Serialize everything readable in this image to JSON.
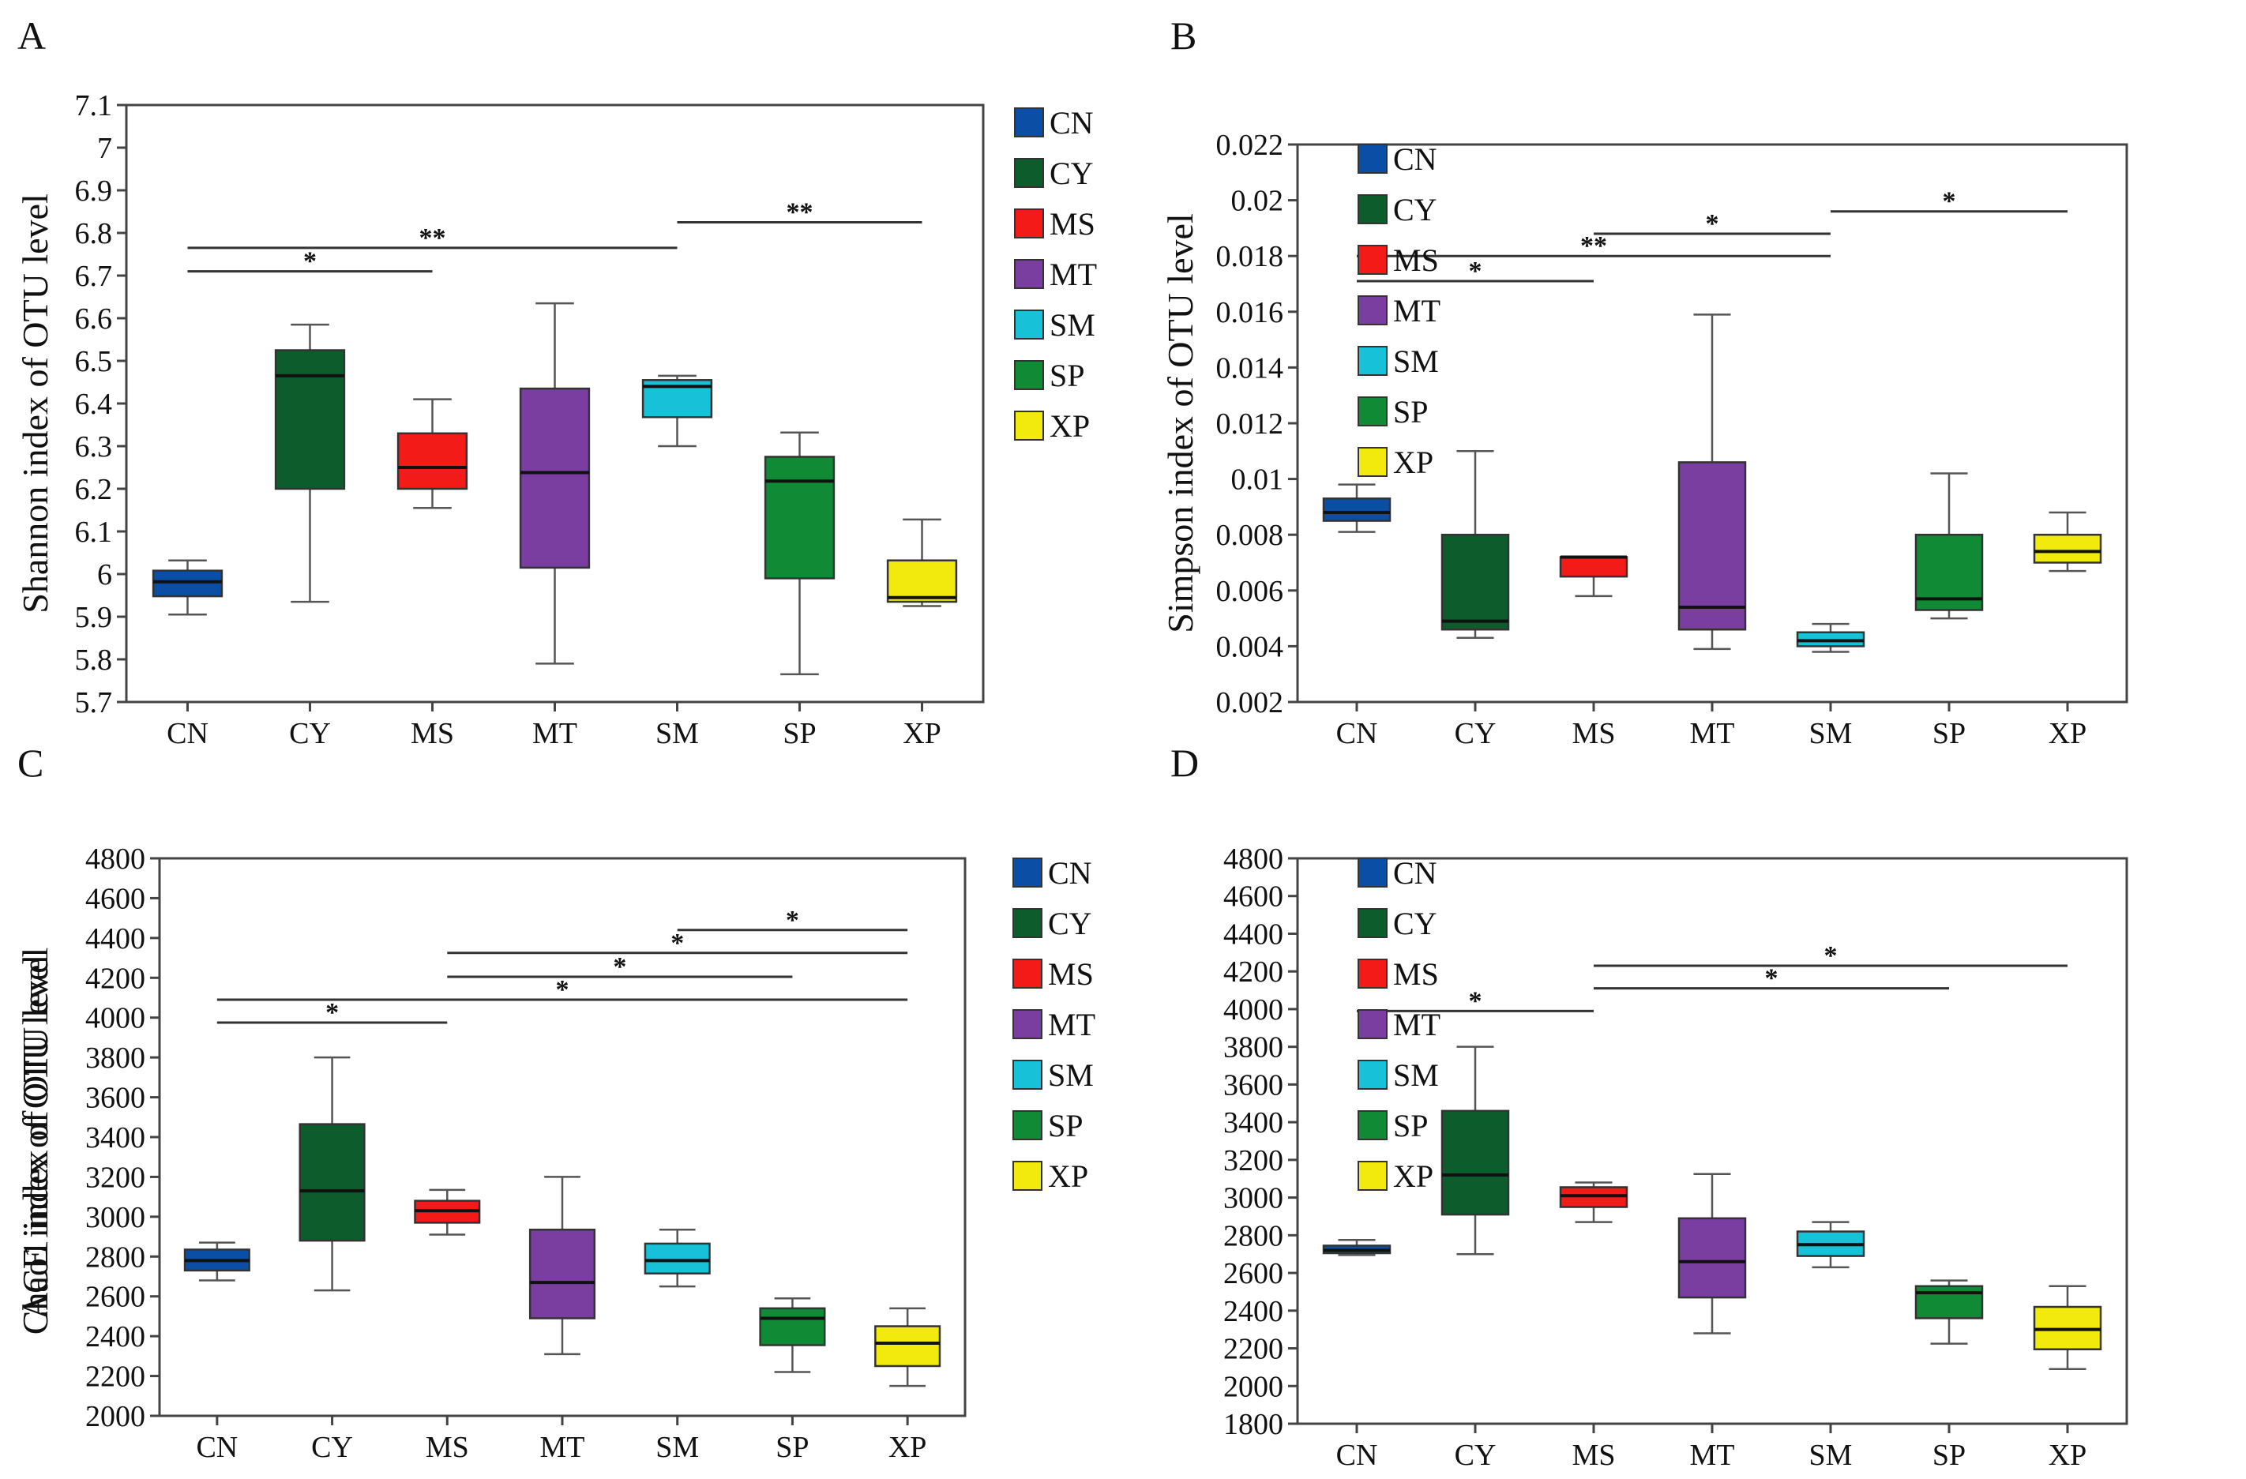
{
  "groups": [
    "CN",
    "CY",
    "MS",
    "MT",
    "SM",
    "SP",
    "XP"
  ],
  "colors": {
    "CN": "#0a4ea6",
    "CY": "#0d5c2c",
    "MS": "#f21b17",
    "MT": "#7a3ea0",
    "SM": "#17c1d8",
    "SP": "#108a35",
    "XP": "#f2ea0c"
  },
  "chart_data": [
    {
      "panel_label": "A",
      "type": "box",
      "ylabel": "Shannon index of OTU level",
      "ylim": [
        5.7,
        7.1
      ],
      "yticks": [
        "5.7",
        "5.8",
        "5.9",
        "6",
        "6.1",
        "6.2",
        "6.3",
        "6.4",
        "6.5",
        "6.6",
        "6.7",
        "6.8",
        "6.9",
        "7",
        "7.1"
      ],
      "boxes": [
        {
          "name": "CN",
          "min": 5.905,
          "q1": 5.948,
          "median": 5.982,
          "q3": 6.008,
          "max": 6.032
        },
        {
          "name": "CY",
          "min": 5.935,
          "q1": 6.2,
          "median": 6.465,
          "q3": 6.525,
          "max": 6.585
        },
        {
          "name": "MS",
          "min": 6.155,
          "q1": 6.2,
          "median": 6.25,
          "q3": 6.33,
          "max": 6.41
        },
        {
          "name": "MT",
          "min": 5.79,
          "q1": 6.015,
          "median": 6.238,
          "q3": 6.435,
          "max": 6.635
        },
        {
          "name": "SM",
          "min": 6.3,
          "q1": 6.368,
          "median": 6.44,
          "q3": 6.455,
          "max": 6.465
        },
        {
          "name": "SP",
          "min": 5.765,
          "q1": 5.99,
          "median": 6.218,
          "q3": 6.275,
          "max": 6.332
        },
        {
          "name": "XP",
          "min": 5.925,
          "q1": 5.935,
          "median": 5.945,
          "q3": 6.032,
          "max": 6.128
        }
      ],
      "significance": [
        {
          "from": "CN",
          "to": "MS",
          "y": 6.71,
          "label": "*"
        },
        {
          "from": "CN",
          "to": "SM",
          "y": 6.765,
          "label": "**"
        },
        {
          "from": "SM",
          "to": "XP",
          "y": 6.825,
          "label": "**"
        }
      ]
    },
    {
      "panel_label": "B",
      "type": "box",
      "ylabel": "Simpson index of OTU level",
      "ylim": [
        0.002,
        0.022
      ],
      "yticks": [
        "0.002",
        "0.004",
        "0.006",
        "0.008",
        "0.01",
        "0.012",
        "0.014",
        "0.016",
        "0.018",
        "0.02",
        "0.022"
      ],
      "boxes": [
        {
          "name": "CN",
          "min": 0.0081,
          "q1": 0.0085,
          "median": 0.0088,
          "q3": 0.0093,
          "max": 0.0098
        },
        {
          "name": "CY",
          "min": 0.0043,
          "q1": 0.0046,
          "median": 0.0049,
          "q3": 0.008,
          "max": 0.011
        },
        {
          "name": "MS",
          "min": 0.0058,
          "q1": 0.0065,
          "median": 0.0072,
          "q3": 0.0072,
          "max": 0.0072
        },
        {
          "name": "MT",
          "min": 0.0039,
          "q1": 0.0046,
          "median": 0.0054,
          "q3": 0.0106,
          "max": 0.0159
        },
        {
          "name": "SM",
          "min": 0.0038,
          "q1": 0.004,
          "median": 0.0042,
          "q3": 0.0045,
          "max": 0.0048
        },
        {
          "name": "SP",
          "min": 0.005,
          "q1": 0.0053,
          "median": 0.0057,
          "q3": 0.008,
          "max": 0.0102
        },
        {
          "name": "XP",
          "min": 0.0067,
          "q1": 0.007,
          "median": 0.0074,
          "q3": 0.008,
          "max": 0.0088
        }
      ],
      "significance": [
        {
          "from": "CN",
          "to": "MS",
          "y": 0.0171,
          "label": "*"
        },
        {
          "from": "CN",
          "to": "SM",
          "y": 0.018,
          "label": "**"
        },
        {
          "from": "MS",
          "to": "SM",
          "y": 0.0188,
          "label": "*"
        },
        {
          "from": "SM",
          "to": "XP",
          "y": 0.0196,
          "label": "*"
        }
      ]
    },
    {
      "panel_label": "C",
      "type": "box",
      "ylabel": "ACE index of OTU level",
      "ylim": [
        2000,
        4800
      ],
      "yticks": [
        "2000",
        "2200",
        "2400",
        "2600",
        "2800",
        "3000",
        "3200",
        "3400",
        "3600",
        "3800",
        "4000",
        "4200",
        "4400",
        "4600",
        "4800"
      ],
      "boxes": [
        {
          "name": "CN",
          "min": 2680,
          "q1": 2730,
          "median": 2780,
          "q3": 2835,
          "max": 2870
        },
        {
          "name": "CY",
          "min": 2630,
          "q1": 2880,
          "median": 3130,
          "q3": 3465,
          "max": 3800
        },
        {
          "name": "MS",
          "min": 2910,
          "q1": 2970,
          "median": 3030,
          "q3": 3080,
          "max": 3135
        },
        {
          "name": "MT",
          "min": 2310,
          "q1": 2490,
          "median": 2670,
          "q3": 2935,
          "max": 3200
        },
        {
          "name": "SM",
          "min": 2650,
          "q1": 2715,
          "median": 2780,
          "q3": 2865,
          "max": 2935
        },
        {
          "name": "SP",
          "min": 2220,
          "q1": 2355,
          "median": 2490,
          "q3": 2540,
          "max": 2590
        },
        {
          "name": "XP",
          "min": 2150,
          "q1": 2250,
          "median": 2365,
          "q3": 2450,
          "max": 2540
        }
      ],
      "significance": [
        {
          "from": "CN",
          "to": "MS",
          "y": 3975,
          "label": "*"
        },
        {
          "from": "CN",
          "to": "XP",
          "y": 4090,
          "label": "*"
        },
        {
          "from": "MS",
          "to": "SP",
          "y": 4205,
          "label": "*"
        },
        {
          "from": "MS",
          "to": "XP",
          "y": 4325,
          "label": "*"
        },
        {
          "from": "SM",
          "to": "XP",
          "y": 4440,
          "label": "*"
        }
      ]
    },
    {
      "panel_label": "D",
      "type": "box",
      "ylabel": "Chao1 index of OTU level",
      "ylim": [
        1800,
        4800
      ],
      "yticks": [
        "1800",
        "2000",
        "2200",
        "2400",
        "2600",
        "2800",
        "3000",
        "3200",
        "3400",
        "3600",
        "3800",
        "4000",
        "4200",
        "4400",
        "4600",
        "4800"
      ],
      "boxes": [
        {
          "name": "CN",
          "min": 2695,
          "q1": 2705,
          "median": 2720,
          "q3": 2745,
          "max": 2775
        },
        {
          "name": "CY",
          "min": 2700,
          "q1": 2910,
          "median": 3120,
          "q3": 3460,
          "max": 3800
        },
        {
          "name": "MS",
          "min": 2870,
          "q1": 2950,
          "median": 3010,
          "q3": 3055,
          "max": 3080
        },
        {
          "name": "MT",
          "min": 2280,
          "q1": 2470,
          "median": 2660,
          "q3": 2890,
          "max": 3125
        },
        {
          "name": "SM",
          "min": 2630,
          "q1": 2690,
          "median": 2750,
          "q3": 2820,
          "max": 2870
        },
        {
          "name": "SP",
          "min": 2225,
          "q1": 2360,
          "median": 2495,
          "q3": 2530,
          "max": 2560
        },
        {
          "name": "XP",
          "min": 2090,
          "q1": 2195,
          "median": 2300,
          "q3": 2420,
          "max": 2530
        }
      ],
      "significance": [
        {
          "from": "CN",
          "to": "MS",
          "y": 3990,
          "label": "*"
        },
        {
          "from": "MS",
          "to": "SP",
          "y": 4110,
          "label": "*"
        },
        {
          "from": "MS",
          "to": "XP",
          "y": 4230,
          "label": "*"
        }
      ]
    }
  ]
}
